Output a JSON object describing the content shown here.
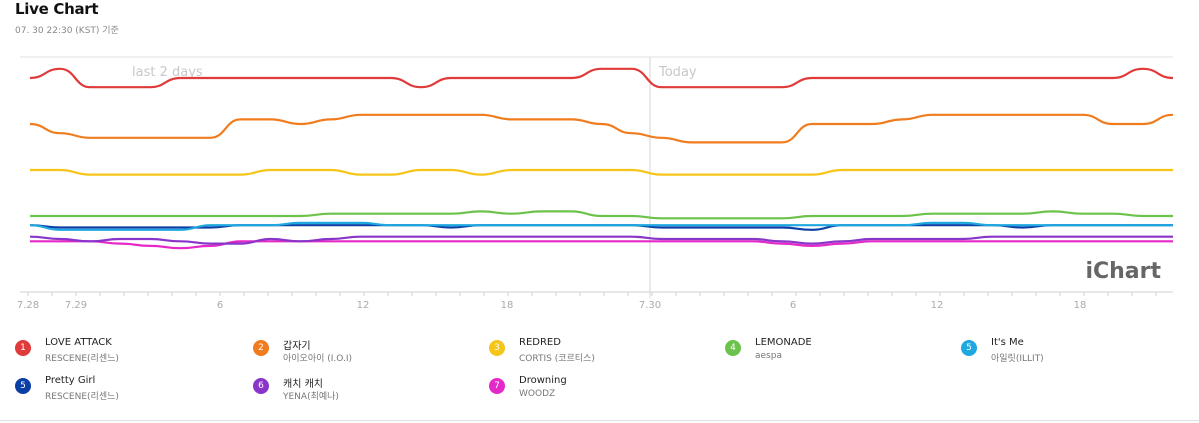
{
  "header": {
    "title": "Live Chart",
    "subtitle": "07. 30 22:30 (KST) 기준"
  },
  "chart_data": {
    "type": "line",
    "y_is_rank": true,
    "ylim": [
      1,
      7
    ],
    "grid": true,
    "x_ticks": [
      "7.28",
      "7.29",
      "6",
      "12",
      "18",
      "7.30",
      "6",
      "12",
      "18"
    ],
    "annotations": [
      "last 2 days",
      "Today"
    ],
    "watermark": "iChart",
    "series": [
      {
        "rank": "1",
        "name": "LOVE ATTACK",
        "artist": "RESCENE(리센느)",
        "color": "#e03a3a",
        "values": [
          1.0,
          0.8,
          1.2,
          1.2,
          1.2,
          1.0,
          1.0,
          1.0,
          1.0,
          1.0,
          1.0,
          1.0,
          1.0,
          1.2,
          1.0,
          1.0,
          1.0,
          1.0,
          1.0,
          0.8,
          0.8,
          1.2,
          1.2,
          1.2,
          1.2,
          1.2,
          1.0,
          1.0,
          1.0,
          1.0,
          1.0,
          1.0,
          1.0,
          1.0,
          1.0,
          1.0,
          1.0,
          0.8,
          1.0
        ]
      },
      {
        "rank": "2",
        "name": "갑자기",
        "artist": "아이오아이 (I.O.I)",
        "color": "#f07c1e",
        "values": [
          2.0,
          2.2,
          2.3,
          2.3,
          2.3,
          2.3,
          2.3,
          1.9,
          1.9,
          2.0,
          1.9,
          1.8,
          1.8,
          1.8,
          1.8,
          1.8,
          1.9,
          1.9,
          1.9,
          2.0,
          2.2,
          2.3,
          2.4,
          2.4,
          2.4,
          2.4,
          2.0,
          2.0,
          2.0,
          1.9,
          1.8,
          1.8,
          1.8,
          1.8,
          1.8,
          1.8,
          2.0,
          2.0,
          1.8
        ]
      },
      {
        "rank": "3",
        "name": "REDRED",
        "artist": "CORTIS (코르티스)",
        "color": "#f5c518",
        "values": [
          3.0,
          3.0,
          3.1,
          3.1,
          3.1,
          3.1,
          3.1,
          3.1,
          3.0,
          3.0,
          3.0,
          3.1,
          3.1,
          3.0,
          3.0,
          3.1,
          3.0,
          3.0,
          3.0,
          3.0,
          3.0,
          3.1,
          3.1,
          3.1,
          3.1,
          3.1,
          3.1,
          3.0,
          3.0,
          3.0,
          3.0,
          3.0,
          3.0,
          3.0,
          3.0,
          3.0,
          3.0,
          3.0,
          3.0
        ]
      },
      {
        "rank": "4",
        "name": "LEMONADE",
        "artist": "aespa",
        "color": "#6cc24a",
        "values": [
          4.0,
          4.0,
          4.0,
          4.0,
          4.0,
          4.0,
          4.0,
          4.0,
          4.0,
          4.0,
          3.95,
          3.95,
          3.95,
          3.95,
          3.95,
          3.9,
          3.95,
          3.9,
          3.9,
          4.0,
          4.0,
          4.05,
          4.05,
          4.05,
          4.05,
          4.05,
          4.0,
          4.0,
          4.0,
          4.0,
          3.95,
          3.95,
          3.95,
          3.95,
          3.9,
          3.95,
          3.95,
          4.0,
          4.0
        ]
      },
      {
        "rank": "5",
        "name": "It's Me",
        "artist": "아일릿(ILLIT)",
        "color": "#1fa8e0",
        "values": [
          4.2,
          4.3,
          4.3,
          4.3,
          4.3,
          4.3,
          4.2,
          4.2,
          4.2,
          4.15,
          4.15,
          4.15,
          4.2,
          4.2,
          4.2,
          4.2,
          4.2,
          4.2,
          4.2,
          4.2,
          4.2,
          4.2,
          4.2,
          4.2,
          4.2,
          4.2,
          4.2,
          4.2,
          4.2,
          4.2,
          4.15,
          4.15,
          4.2,
          4.2,
          4.2,
          4.2,
          4.2,
          4.2,
          4.2
        ]
      },
      {
        "rank": "5",
        "name": "Pretty Girl",
        "artist": "RESCENE(리센느)",
        "color": "#0c3fa6",
        "values": [
          4.2,
          4.25,
          4.25,
          4.25,
          4.25,
          4.25,
          4.25,
          4.2,
          4.2,
          4.2,
          4.2,
          4.2,
          4.2,
          4.2,
          4.25,
          4.2,
          4.2,
          4.2,
          4.2,
          4.2,
          4.2,
          4.25,
          4.25,
          4.25,
          4.25,
          4.25,
          4.3,
          4.2,
          4.2,
          4.2,
          4.2,
          4.2,
          4.2,
          4.25,
          4.2,
          4.2,
          4.2,
          4.2,
          4.2
        ]
      },
      {
        "rank": "6",
        "name": "캐치 캐치",
        "artist": "YENA(최예나)",
        "color": "#8a35c9",
        "values": [
          4.45,
          4.5,
          4.55,
          4.5,
          4.5,
          4.55,
          4.6,
          4.6,
          4.5,
          4.55,
          4.5,
          4.45,
          4.45,
          4.45,
          4.45,
          4.45,
          4.45,
          4.45,
          4.45,
          4.45,
          4.45,
          4.5,
          4.5,
          4.5,
          4.5,
          4.55,
          4.6,
          4.55,
          4.5,
          4.5,
          4.5,
          4.5,
          4.45,
          4.45,
          4.45,
          4.45,
          4.45,
          4.45,
          4.45
        ]
      },
      {
        "rank": "7",
        "name": "Drowning",
        "artist": "WOODZ",
        "color": "#e528c8",
        "values": [
          4.55,
          4.55,
          4.55,
          4.6,
          4.65,
          4.7,
          4.65,
          4.55,
          4.55,
          4.55,
          4.55,
          4.55,
          4.55,
          4.55,
          4.55,
          4.55,
          4.55,
          4.55,
          4.55,
          4.55,
          4.55,
          4.55,
          4.55,
          4.55,
          4.55,
          4.6,
          4.65,
          4.6,
          4.55,
          4.55,
          4.55,
          4.55,
          4.55,
          4.55,
          4.55,
          4.55,
          4.55,
          4.55,
          4.55
        ]
      }
    ]
  }
}
